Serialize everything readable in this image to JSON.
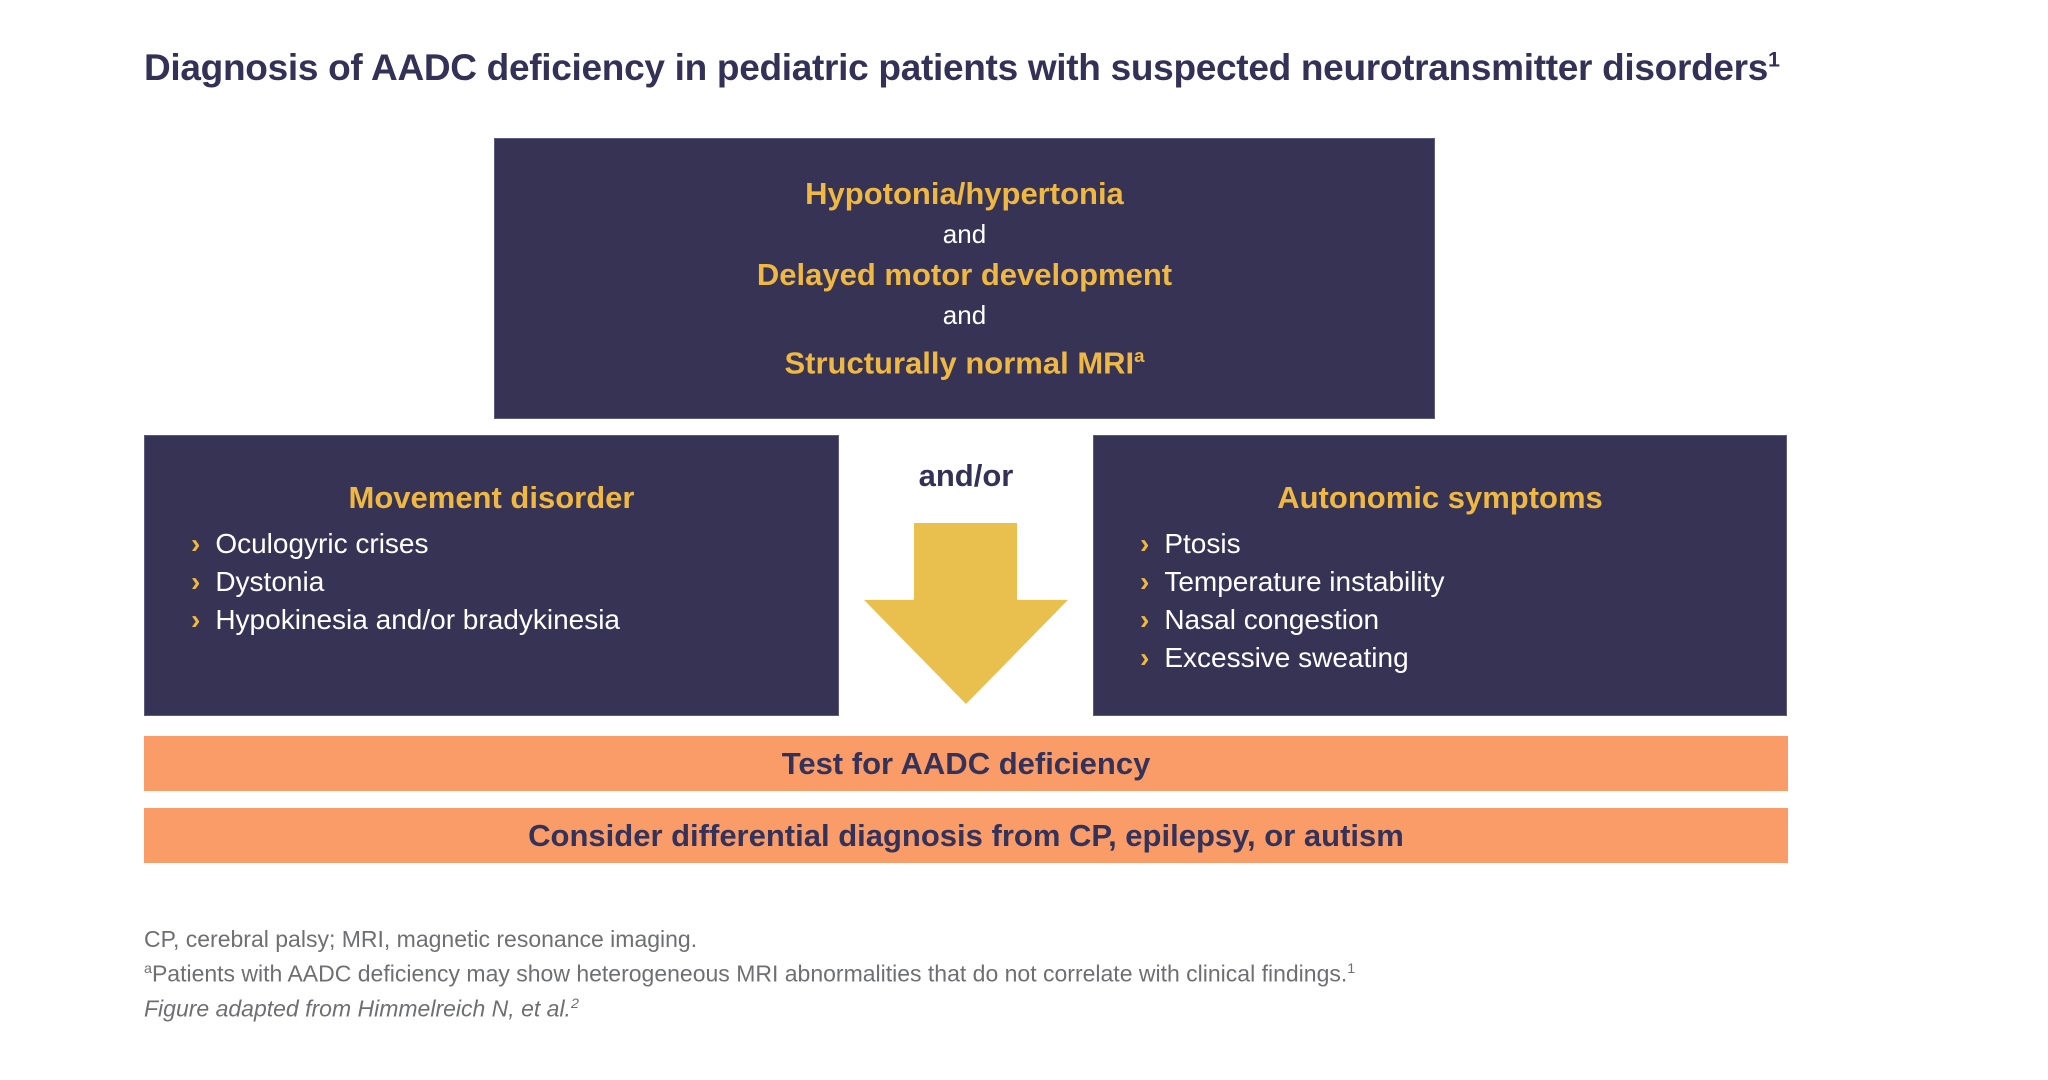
{
  "title": {
    "text": "Diagnosis of AADC deficiency in pediatric patients with suspected neurotransmitter disorders",
    "reference": "1"
  },
  "criteria_box": {
    "criterion1": "Hypotonia/hypertonia",
    "connector1": "and",
    "criterion2": "Delayed motor development",
    "connector2": "and",
    "criterion3": "Structurally normal MRI",
    "criterion3_sup": "a"
  },
  "movement_box": {
    "heading": "Movement disorder",
    "items": [
      "Oculogyric crises",
      "Dystonia",
      "Hypokinesia and/or bradykinesia"
    ]
  },
  "autonomic_box": {
    "heading": "Autonomic symptoms",
    "items": [
      "Ptosis",
      "Temperature instability",
      "Nasal congestion",
      "Excessive sweating"
    ]
  },
  "connector": {
    "label": "and/or"
  },
  "action_bars": {
    "test": "Test for AADC deficiency",
    "differential": "Consider differential diagnosis from CP, epilepsy, or autism"
  },
  "footnotes": {
    "abbreviations": "CP, cerebral palsy; MRI, magnetic resonance imaging.",
    "mri_note_sup": "a",
    "mri_note": "Patients with AADC deficiency may show heterogeneous MRI abnormalities that do not correlate with clinical findings.",
    "mri_note_ref": "1",
    "adaptation": "Figure adapted from Himmelreich N, et al.",
    "adaptation_ref": "2"
  },
  "ui": {
    "bullet_char": "›"
  },
  "colors": {
    "navy_box": "#373355",
    "heading_yellow": "#EFB843",
    "arrow_yellow": "#E9BF4D",
    "bar_orange": "#F99C67",
    "text_navy": "#333155",
    "footnote_gray": "#6E6F72",
    "background": "#FFFFFF"
  }
}
